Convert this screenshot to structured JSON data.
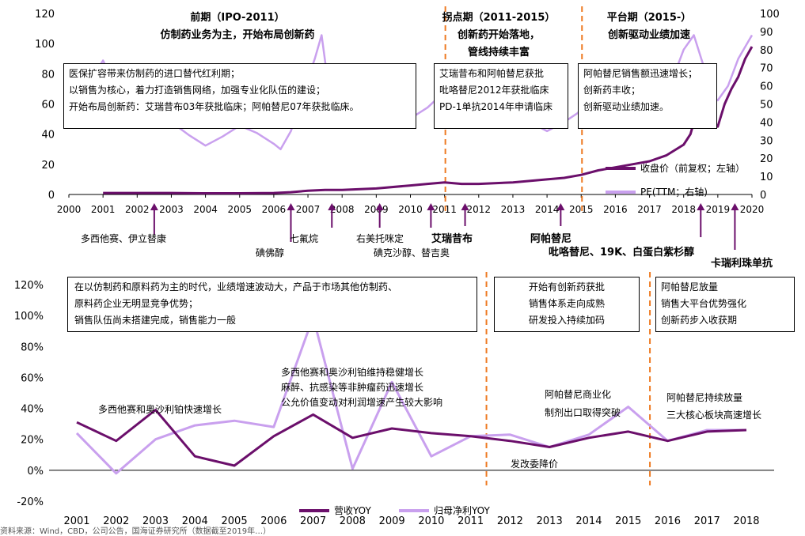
{
  "colors": {
    "dark": "#6b0f6b",
    "light": "#c9a0ee",
    "divider": "#ee7a22"
  },
  "periods": [
    {
      "title": "前期（IPO-2011）",
      "subtitle": "仿制药业务为主，开始布局创新药"
    },
    {
      "title": "拐点期（2011-2015）",
      "subtitle": "创新药开始落地，",
      "subtitle2": "管线持续丰富"
    },
    {
      "title": "平台期（2015-）",
      "subtitle": "创新驱动业绩加速"
    }
  ],
  "top_notes": [
    [
      "医保扩容带来仿制药的进口替代红利期；",
      "以销售为核心，着力打造销售网络，加强专业化队伍的建设；",
      "开始布局创新药：艾瑞昔布03年获批临床；阿帕替尼07年获批临床。"
    ],
    [
      "艾瑞昔布和阿帕替尼获批",
      "吡咯替尼2012年获批临床",
      "PD-1单抗2014年申请临床"
    ],
    [
      "阿帕替尼销售额迅速增长；",
      "创新药丰收；",
      "创新驱动业绩加速。"
    ]
  ],
  "events": [
    {
      "text": "多西他赛、伊立替康",
      "bold": false
    },
    {
      "text": "碘佛醇",
      "bold": false
    },
    {
      "text": "七氟烷",
      "bold": false
    },
    {
      "text": "右美托咪定",
      "bold": false
    },
    {
      "text": "碘克沙醇、替吉奥",
      "bold": false
    },
    {
      "text": "艾瑞昔布",
      "bold": true
    },
    {
      "text": "阿帕替尼",
      "bold": true
    },
    {
      "text": "吡咯替尼、19K、白蛋白紫杉醇",
      "bold": true
    },
    {
      "text": "卡瑞利珠单抗",
      "bold": true
    }
  ],
  "bottom_notes": [
    [
      "在以仿制药和原料药为主的时代，业绩增速波动大，产品于市场其他仿制药、",
      "原料药企业无明显竞争优势；",
      "销售队伍尚未搭建完成，销售能力一般"
    ],
    [
      "开始有创新药获批",
      "销售体系走向成熟",
      "研发投入持续加码"
    ],
    [
      "阿帕替尼放量",
      "销售大平台优势强化",
      "创新药步入收获期"
    ]
  ],
  "bottom_annotations": {
    "a1": "多西他赛和奥沙利铂快速增长",
    "a2": [
      "多西他赛和奥沙利铂维持稳健增长",
      "麻醉、抗感染等非肿瘤药迅速增长",
      "公允价值变动对利润增速产生较大影响"
    ],
    "a3": [
      "阿帕替尼商业化",
      "制剂出口取得突破"
    ],
    "a4": "发改委降价",
    "a5": [
      "阿帕替尼持续放量",
      "三大核心板块高速增长"
    ]
  },
  "source_text": "资料来源：Wind，CBD，公司公告，国海证券研究所（数据截至2019年…）",
  "chart_data": [
    {
      "type": "line",
      "x_range": [
        2000,
        2020
      ],
      "x_ticks": [
        "2000",
        "2001",
        "2002",
        "2003",
        "2004",
        "2005",
        "2006",
        "2007",
        "2008",
        "2009",
        "2010",
        "2011",
        "2012",
        "2013",
        "2014",
        "2015",
        "2016",
        "2017",
        "2018",
        "2019",
        "2020"
      ],
      "ylim_left": [
        0,
        120
      ],
      "yticks_left": [
        "0",
        "20",
        "40",
        "60",
        "80",
        "100",
        "120"
      ],
      "ylim_right": [
        0,
        100
      ],
      "yticks_right": [
        "0",
        "10",
        "20",
        "30",
        "40",
        "50",
        "60",
        "70",
        "80",
        "90",
        "100"
      ],
      "grid": false,
      "legend_position": "right",
      "series": [
        {
          "name": "收盘价（前复权；左轴）",
          "axis": "left",
          "x": [
            2001,
            2002,
            2003,
            2004,
            2005,
            2006,
            2006.5,
            2007,
            2007.5,
            2008,
            2009,
            2010,
            2010.5,
            2011,
            2011.5,
            2012,
            2013,
            2014,
            2014.5,
            2015,
            2015.5,
            2016,
            2016.5,
            2017,
            2017.5,
            2018,
            2018.2,
            2018.4,
            2018.6,
            2018.8,
            2019,
            2019.2,
            2019.4,
            2019.6,
            2019.8,
            2020
          ],
          "y": [
            1,
            1,
            1,
            0.8,
            0.8,
            1,
            1.5,
            2.5,
            3,
            3,
            4,
            6,
            7,
            8,
            7,
            7,
            8,
            10,
            11,
            13,
            16,
            18,
            20,
            22,
            26,
            33,
            40,
            56,
            68,
            50,
            45,
            60,
            70,
            78,
            90,
            98
          ]
        },
        {
          "name": "PE(TTM；右轴)",
          "axis": "right",
          "x": [
            2000.8,
            2001,
            2001.2,
            2001.5,
            2002,
            2002.5,
            2003,
            2003.5,
            2004,
            2004.5,
            2005,
            2005.5,
            2006,
            2006.2,
            2006.5,
            2006.8,
            2007,
            2007.2,
            2007.4,
            2007.6,
            2007.8,
            2008,
            2008.3,
            2008.6,
            2009,
            2009.5,
            2010,
            2010.5,
            2010.9,
            2011.1,
            2011.5,
            2012,
            2012.5,
            2013,
            2013.5,
            2014,
            2014.5,
            2014.9,
            2015.1,
            2015.5,
            2016,
            2016.5,
            2017,
            2017.5,
            2017.8,
            2018,
            2018.3,
            2018.6,
            2018.8,
            2019,
            2019.3,
            2019.6,
            2020
          ],
          "y": [
            68,
            74,
            66,
            55,
            48,
            42,
            40,
            33,
            27,
            32,
            38,
            34,
            28,
            25,
            35,
            52,
            64,
            75,
            88,
            60,
            58,
            42,
            48,
            50,
            40,
            45,
            42,
            48,
            55,
            42,
            44,
            45,
            52,
            38,
            40,
            35,
            40,
            45,
            50,
            58,
            70,
            60,
            58,
            62,
            70,
            80,
            88,
            70,
            55,
            52,
            60,
            75,
            88
          ]
        }
      ]
    },
    {
      "type": "line",
      "categories": [
        "2001",
        "2002",
        "2003",
        "2004",
        "2005",
        "2006",
        "2007",
        "2008",
        "2009",
        "2010",
        "2011",
        "2012",
        "2013",
        "2014",
        "2015",
        "2016",
        "2017",
        "2018"
      ],
      "ylim": [
        -20,
        120
      ],
      "yticks": [
        "-20%",
        "0%",
        "20%",
        "40%",
        "60%",
        "80%",
        "100%",
        "120%"
      ],
      "grid": false,
      "legend_position": "bottom",
      "series": [
        {
          "name": "营收YOY",
          "values": [
            31,
            19,
            39,
            9,
            3,
            22,
            36,
            21,
            27,
            24,
            22,
            19,
            15,
            21,
            25,
            19,
            25,
            26
          ]
        },
        {
          "name": "归母净利YOY",
          "values": [
            24,
            -2,
            20,
            29,
            32,
            28,
            99,
            1,
            57,
            9,
            22,
            23,
            15,
            23,
            41,
            19,
            26,
            26
          ]
        }
      ]
    }
  ]
}
